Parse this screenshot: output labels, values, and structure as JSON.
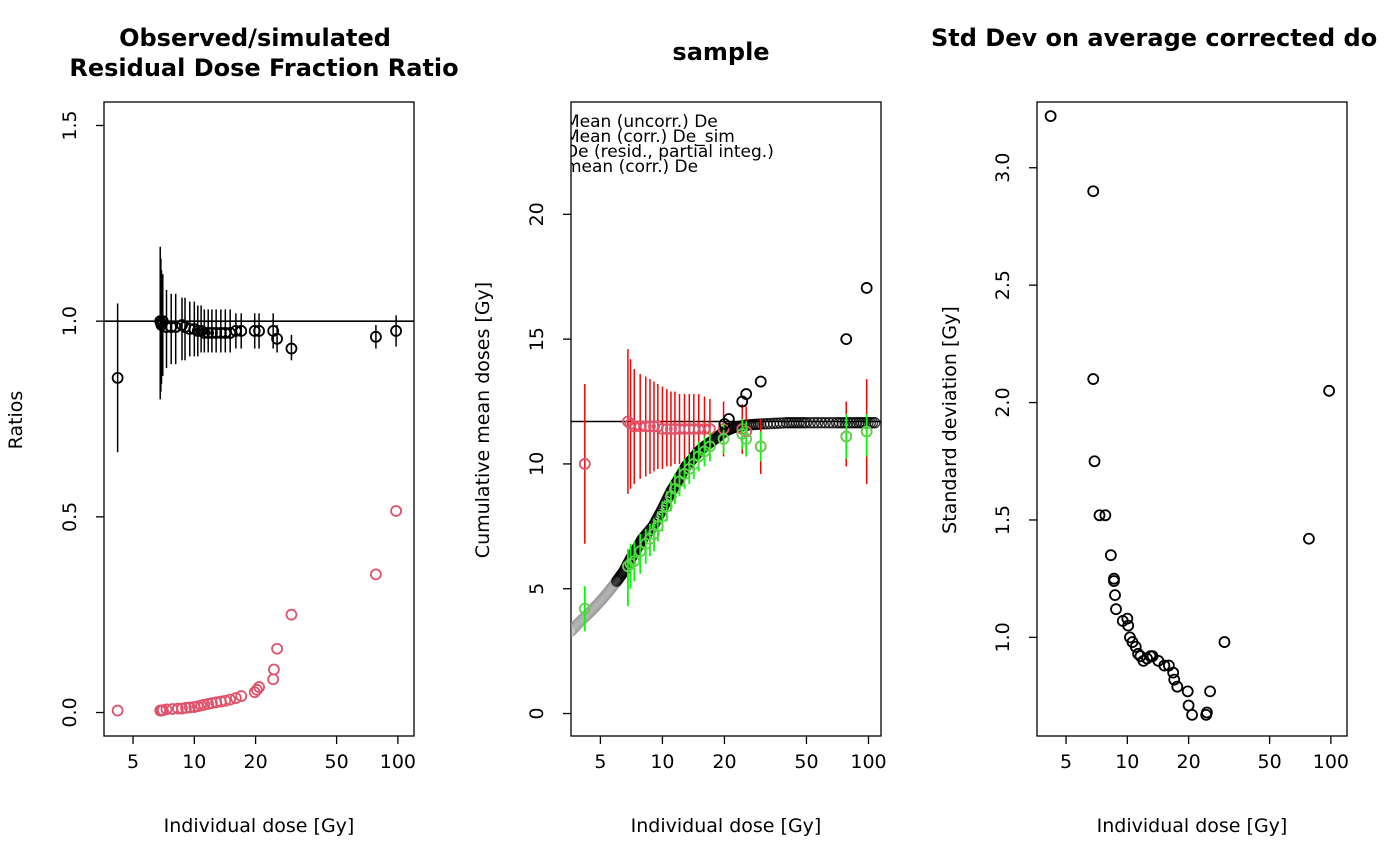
{
  "chart_data": [
    {
      "type": "scatter",
      "title_lines": [
        "Observed/simulated",
        "Residual Dose Fraction Ratio"
      ],
      "xlabel": "Individual dose [Gy]",
      "ylabel": "Ratios",
      "xscale": "log",
      "xlim": [
        3.6,
        120
      ],
      "ylim": [
        -0.06,
        1.56
      ],
      "x_ticks": [
        5,
        10,
        20,
        50,
        100
      ],
      "x_tick_labels": [
        "5",
        "10",
        "20",
        "50",
        "100"
      ],
      "y_ticks": [
        0,
        0.5,
        1,
        1.5
      ],
      "y_tick_labels": [
        "0.0",
        "0.5",
        "1.0",
        "1.5"
      ],
      "reference_line_y": 1.0,
      "colors": {
        "ratio": "#000000",
        "residual": "#df536b"
      },
      "ratio_points": [
        {
          "x": 4.2,
          "y": 0.855,
          "lo": 0.665,
          "hi": 1.045
        },
        {
          "x": 6.8,
          "y": 1.0,
          "lo": 0.8,
          "hi": 1.19
        },
        {
          "x": 6.85,
          "y": 0.995,
          "lo": 0.82,
          "hi": 1.16
        },
        {
          "x": 6.9,
          "y": 0.99,
          "lo": 0.84,
          "hi": 1.13
        },
        {
          "x": 7.0,
          "y": 1.0,
          "lo": 0.86,
          "hi": 1.12
        },
        {
          "x": 7.3,
          "y": 0.985,
          "lo": 0.88,
          "hi": 1.08
        },
        {
          "x": 7.7,
          "y": 0.985,
          "lo": 0.89,
          "hi": 1.07
        },
        {
          "x": 8.1,
          "y": 0.985,
          "lo": 0.89,
          "hi": 1.07
        },
        {
          "x": 8.7,
          "y": 0.99,
          "lo": 0.9,
          "hi": 1.06
        },
        {
          "x": 9.0,
          "y": 0.985,
          "lo": 0.9,
          "hi": 1.06
        },
        {
          "x": 9.5,
          "y": 0.98,
          "lo": 0.91,
          "hi": 1.05
        },
        {
          "x": 10.0,
          "y": 0.98,
          "lo": 0.91,
          "hi": 1.05
        },
        {
          "x": 10.4,
          "y": 0.975,
          "lo": 0.91,
          "hi": 1.04
        },
        {
          "x": 10.8,
          "y": 0.975,
          "lo": 0.92,
          "hi": 1.04
        },
        {
          "x": 11.2,
          "y": 0.97,
          "lo": 0.92,
          "hi": 1.03
        },
        {
          "x": 11.7,
          "y": 0.97,
          "lo": 0.92,
          "hi": 1.03
        },
        {
          "x": 12.2,
          "y": 0.97,
          "lo": 0.92,
          "hi": 1.03
        },
        {
          "x": 12.8,
          "y": 0.97,
          "lo": 0.92,
          "hi": 1.03
        },
        {
          "x": 13.5,
          "y": 0.97,
          "lo": 0.92,
          "hi": 1.03
        },
        {
          "x": 14.2,
          "y": 0.97,
          "lo": 0.92,
          "hi": 1.03
        },
        {
          "x": 15.0,
          "y": 0.97,
          "lo": 0.92,
          "hi": 1.03
        },
        {
          "x": 16.0,
          "y": 0.975,
          "lo": 0.93,
          "hi": 1.02
        },
        {
          "x": 17.0,
          "y": 0.975,
          "lo": 0.93,
          "hi": 1.02
        },
        {
          "x": 19.8,
          "y": 0.975,
          "lo": 0.93,
          "hi": 1.02
        },
        {
          "x": 20.8,
          "y": 0.975,
          "lo": 0.93,
          "hi": 1.02
        },
        {
          "x": 24.4,
          "y": 0.975,
          "lo": 0.93,
          "hi": 1.02
        },
        {
          "x": 25.5,
          "y": 0.955,
          "lo": 0.92,
          "hi": 0.99
        },
        {
          "x": 30.0,
          "y": 0.93,
          "lo": 0.9,
          "hi": 0.965
        },
        {
          "x": 78.0,
          "y": 0.96,
          "lo": 0.93,
          "hi": 0.99
        },
        {
          "x": 98.0,
          "y": 0.975,
          "lo": 0.935,
          "hi": 1.015
        }
      ],
      "residual_points": [
        {
          "x": 4.2,
          "y": 0.005
        },
        {
          "x": 6.8,
          "y": 0.005
        },
        {
          "x": 6.9,
          "y": 0.005
        },
        {
          "x": 7.0,
          "y": 0.006
        },
        {
          "x": 7.3,
          "y": 0.008
        },
        {
          "x": 7.8,
          "y": 0.009
        },
        {
          "x": 8.3,
          "y": 0.01
        },
        {
          "x": 8.7,
          "y": 0.01
        },
        {
          "x": 9.1,
          "y": 0.012
        },
        {
          "x": 9.5,
          "y": 0.013
        },
        {
          "x": 10.0,
          "y": 0.014
        },
        {
          "x": 10.4,
          "y": 0.016
        },
        {
          "x": 10.8,
          "y": 0.018
        },
        {
          "x": 11.2,
          "y": 0.02
        },
        {
          "x": 11.7,
          "y": 0.022
        },
        {
          "x": 12.2,
          "y": 0.024
        },
        {
          "x": 12.8,
          "y": 0.026
        },
        {
          "x": 13.5,
          "y": 0.028
        },
        {
          "x": 14.2,
          "y": 0.03
        },
        {
          "x": 15.0,
          "y": 0.033
        },
        {
          "x": 16.0,
          "y": 0.037
        },
        {
          "x": 17.0,
          "y": 0.042
        },
        {
          "x": 19.8,
          "y": 0.052
        },
        {
          "x": 20.3,
          "y": 0.058
        },
        {
          "x": 20.8,
          "y": 0.065
        },
        {
          "x": 24.4,
          "y": 0.085
        },
        {
          "x": 24.6,
          "y": 0.11
        },
        {
          "x": 25.5,
          "y": 0.163
        },
        {
          "x": 30.0,
          "y": 0.25
        },
        {
          "x": 78.0,
          "y": 0.353
        },
        {
          "x": 98.0,
          "y": 0.515
        }
      ]
    },
    {
      "type": "scatter",
      "title_lines": [
        "sample"
      ],
      "xlabel": "Individual dose [Gy]",
      "ylabel": "Cumulative mean doses [Gy]",
      "xscale": "log",
      "xlim": [
        3.6,
        115
      ],
      "ylim": [
        -0.9,
        24.5
      ],
      "x_ticks": [
        5,
        10,
        20,
        50,
        100
      ],
      "x_tick_labels": [
        "5",
        "10",
        "20",
        "50",
        "100"
      ],
      "y_ticks": [
        0,
        5,
        10,
        15,
        20
      ],
      "y_tick_labels": [
        "0",
        "5",
        "10",
        "15",
        "20"
      ],
      "reference_line_y": 11.7,
      "legend": [
        "Mean (uncorr.) De",
        "Mean (corr.) De_sim",
        "De (resid., partial integ.)",
        "mean (corr.) De"
      ],
      "colors": {
        "cumulative": "#000000",
        "residual": "#df536b",
        "residual_bar": "#ff0000",
        "corrected": "#61d04f",
        "corrected_bar": "#00ff00"
      },
      "cumulative_curve": [
        [
          3.6,
          3.3
        ],
        [
          4.0,
          3.7
        ],
        [
          4.5,
          4.1
        ],
        [
          5.0,
          4.5
        ],
        [
          5.5,
          4.9
        ],
        [
          6.0,
          5.3
        ],
        [
          6.5,
          5.7
        ],
        [
          7.0,
          6.2
        ],
        [
          7.5,
          6.6
        ],
        [
          8.0,
          7.0
        ],
        [
          9.0,
          7.5
        ],
        [
          10.0,
          8.2
        ],
        [
          11.0,
          8.9
        ],
        [
          12.0,
          9.4
        ],
        [
          13.0,
          9.9
        ],
        [
          14.0,
          10.2
        ],
        [
          15.0,
          10.5
        ],
        [
          16.0,
          10.7
        ],
        [
          18.0,
          11.0
        ],
        [
          20.0,
          11.3
        ],
        [
          22.0,
          11.45
        ],
        [
          25.0,
          11.55
        ],
        [
          30.0,
          11.6
        ],
        [
          40.0,
          11.65
        ],
        [
          50.0,
          11.65
        ],
        [
          70.0,
          11.65
        ],
        [
          90.0,
          11.65
        ],
        [
          110.0,
          11.65
        ]
      ],
      "uncorrected_points": [
        {
          "x": 20.0,
          "y": 11.6
        },
        {
          "x": 21.0,
          "y": 11.8
        },
        {
          "x": 24.4,
          "y": 12.5
        },
        {
          "x": 25.5,
          "y": 12.8
        },
        {
          "x": 30.0,
          "y": 13.3
        },
        {
          "x": 78.0,
          "y": 15.0
        },
        {
          "x": 98.0,
          "y": 17.05
        }
      ],
      "residual_points": [
        {
          "x": 4.2,
          "y": 10.0,
          "lo": 6.8,
          "hi": 13.2
        },
        {
          "x": 6.8,
          "y": 11.7,
          "lo": 8.8,
          "hi": 14.6
        },
        {
          "x": 7.0,
          "y": 11.6,
          "lo": 9.0,
          "hi": 14.2
        },
        {
          "x": 7.3,
          "y": 11.5,
          "lo": 9.2,
          "hi": 13.8
        },
        {
          "x": 7.8,
          "y": 11.5,
          "lo": 9.4,
          "hi": 13.6
        },
        {
          "x": 8.3,
          "y": 11.5,
          "lo": 9.5,
          "hi": 13.5
        },
        {
          "x": 8.7,
          "y": 11.5,
          "lo": 9.6,
          "hi": 13.4
        },
        {
          "x": 9.1,
          "y": 11.5,
          "lo": 9.7,
          "hi": 13.3
        },
        {
          "x": 9.5,
          "y": 11.5,
          "lo": 9.8,
          "hi": 13.2
        },
        {
          "x": 10.0,
          "y": 11.4,
          "lo": 9.8,
          "hi": 13.1
        },
        {
          "x": 10.5,
          "y": 11.4,
          "lo": 9.9,
          "hi": 13.0
        },
        {
          "x": 11.0,
          "y": 11.4,
          "lo": 9.9,
          "hi": 12.9
        },
        {
          "x": 11.5,
          "y": 11.4,
          "lo": 10.0,
          "hi": 12.9
        },
        {
          "x": 12.1,
          "y": 11.4,
          "lo": 10.0,
          "hi": 12.8
        },
        {
          "x": 12.8,
          "y": 11.4,
          "lo": 10.0,
          "hi": 12.8
        },
        {
          "x": 13.5,
          "y": 11.4,
          "lo": 10.0,
          "hi": 12.8
        },
        {
          "x": 14.2,
          "y": 11.4,
          "lo": 10.0,
          "hi": 12.8
        },
        {
          "x": 15.0,
          "y": 11.4,
          "lo": 10.1,
          "hi": 12.8
        },
        {
          "x": 16.0,
          "y": 11.4,
          "lo": 10.2,
          "hi": 12.7
        },
        {
          "x": 17.0,
          "y": 11.4,
          "lo": 10.3,
          "hi": 12.6
        },
        {
          "x": 19.8,
          "y": 11.4,
          "lo": 10.3,
          "hi": 12.5
        },
        {
          "x": 24.4,
          "y": 11.4,
          "lo": 10.4,
          "hi": 12.4
        },
        {
          "x": 25.5,
          "y": 11.3,
          "lo": 10.3,
          "hi": 12.3
        },
        {
          "x": 30.0,
          "y": 10.7,
          "lo": 9.6,
          "hi": 11.8
        },
        {
          "x": 78.0,
          "y": 11.1,
          "lo": 9.9,
          "hi": 12.5
        },
        {
          "x": 98.0,
          "y": 11.3,
          "lo": 9.2,
          "hi": 13.4
        }
      ],
      "corrected_points": [
        {
          "x": 4.2,
          "y": 4.2,
          "lo": 3.3,
          "hi": 5.1
        },
        {
          "x": 6.8,
          "y": 5.9,
          "lo": 4.3,
          "hi": 6.6
        },
        {
          "x": 7.0,
          "y": 6.0,
          "lo": 5.0,
          "hi": 6.8
        },
        {
          "x": 7.3,
          "y": 6.1,
          "lo": 5.3,
          "hi": 6.9
        },
        {
          "x": 7.8,
          "y": 6.5,
          "lo": 5.6,
          "hi": 7.2
        },
        {
          "x": 8.3,
          "y": 6.8,
          "lo": 6.0,
          "hi": 7.4
        },
        {
          "x": 8.7,
          "y": 7.0,
          "lo": 6.3,
          "hi": 7.6
        },
        {
          "x": 9.1,
          "y": 7.2,
          "lo": 6.5,
          "hi": 7.8
        },
        {
          "x": 9.5,
          "y": 7.5,
          "lo": 6.9,
          "hi": 8.1
        },
        {
          "x": 10.0,
          "y": 7.9,
          "lo": 7.3,
          "hi": 8.5
        },
        {
          "x": 10.5,
          "y": 8.3,
          "lo": 7.7,
          "hi": 8.9
        },
        {
          "x": 11.0,
          "y": 8.7,
          "lo": 8.1,
          "hi": 9.3
        },
        {
          "x": 11.5,
          "y": 9.0,
          "lo": 8.4,
          "hi": 9.6
        },
        {
          "x": 12.1,
          "y": 9.3,
          "lo": 8.7,
          "hi": 9.9
        },
        {
          "x": 12.8,
          "y": 9.6,
          "lo": 9.0,
          "hi": 10.2
        },
        {
          "x": 13.5,
          "y": 9.8,
          "lo": 9.2,
          "hi": 10.4
        },
        {
          "x": 14.2,
          "y": 10.0,
          "lo": 9.4,
          "hi": 10.6
        },
        {
          "x": 15.0,
          "y": 10.3,
          "lo": 9.7,
          "hi": 10.9
        },
        {
          "x": 16.0,
          "y": 10.5,
          "lo": 9.9,
          "hi": 11.1
        },
        {
          "x": 17.0,
          "y": 10.7,
          "lo": 10.1,
          "hi": 11.3
        },
        {
          "x": 19.8,
          "y": 11.0,
          "lo": 10.4,
          "hi": 11.6
        },
        {
          "x": 24.4,
          "y": 11.2,
          "lo": 10.6,
          "hi": 11.8
        },
        {
          "x": 25.5,
          "y": 11.0,
          "lo": 10.3,
          "hi": 11.7
        },
        {
          "x": 30.0,
          "y": 10.7,
          "lo": 10.1,
          "hi": 11.3
        },
        {
          "x": 78.0,
          "y": 11.1,
          "lo": 10.2,
          "hi": 12.0
        },
        {
          "x": 98.0,
          "y": 11.3,
          "lo": 10.3,
          "hi": 12.0
        }
      ]
    },
    {
      "type": "scatter",
      "title_lines": [
        "Std Dev on average corrected do"
      ],
      "xlabel": "Individual dose [Gy]",
      "ylabel": "Standard deviation [Gy]",
      "xscale": "log",
      "xlim": [
        3.6,
        120
      ],
      "ylim": [
        0.58,
        3.28
      ],
      "x_ticks": [
        5,
        10,
        20,
        50,
        100
      ],
      "x_tick_labels": [
        "5",
        "10",
        "20",
        "50",
        "100"
      ],
      "y_ticks": [
        1.0,
        1.5,
        2.0,
        2.5,
        3.0
      ],
      "y_tick_labels": [
        "1.0",
        "1.5",
        "2.0",
        "2.5",
        "3.0"
      ],
      "points": [
        {
          "x": 4.2,
          "y": 3.22
        },
        {
          "x": 6.8,
          "y": 2.9
        },
        {
          "x": 6.8,
          "y": 2.1
        },
        {
          "x": 6.9,
          "y": 1.75
        },
        {
          "x": 7.3,
          "y": 1.52
        },
        {
          "x": 7.8,
          "y": 1.52
        },
        {
          "x": 8.3,
          "y": 1.35
        },
        {
          "x": 8.6,
          "y": 1.25
        },
        {
          "x": 8.6,
          "y": 1.24
        },
        {
          "x": 8.7,
          "y": 1.18
        },
        {
          "x": 8.8,
          "y": 1.12
        },
        {
          "x": 9.5,
          "y": 1.07
        },
        {
          "x": 10.0,
          "y": 1.08
        },
        {
          "x": 10.1,
          "y": 1.05
        },
        {
          "x": 10.3,
          "y": 1.0
        },
        {
          "x": 10.6,
          "y": 0.98
        },
        {
          "x": 11.0,
          "y": 0.96
        },
        {
          "x": 11.3,
          "y": 0.93
        },
        {
          "x": 11.6,
          "y": 0.92
        },
        {
          "x": 12.0,
          "y": 0.9
        },
        {
          "x": 12.5,
          "y": 0.91
        },
        {
          "x": 13.0,
          "y": 0.92
        },
        {
          "x": 13.3,
          "y": 0.92
        },
        {
          "x": 14.2,
          "y": 0.9
        },
        {
          "x": 15.2,
          "y": 0.88
        },
        {
          "x": 16.0,
          "y": 0.88
        },
        {
          "x": 16.8,
          "y": 0.85
        },
        {
          "x": 17.0,
          "y": 0.82
        },
        {
          "x": 17.6,
          "y": 0.79
        },
        {
          "x": 19.8,
          "y": 0.77
        },
        {
          "x": 20.0,
          "y": 0.71
        },
        {
          "x": 20.8,
          "y": 0.67
        },
        {
          "x": 24.4,
          "y": 0.67
        },
        {
          "x": 24.6,
          "y": 0.68
        },
        {
          "x": 25.5,
          "y": 0.77
        },
        {
          "x": 30.0,
          "y": 0.98
        },
        {
          "x": 78.0,
          "y": 1.42
        },
        {
          "x": 98.0,
          "y": 2.05
        }
      ]
    }
  ]
}
